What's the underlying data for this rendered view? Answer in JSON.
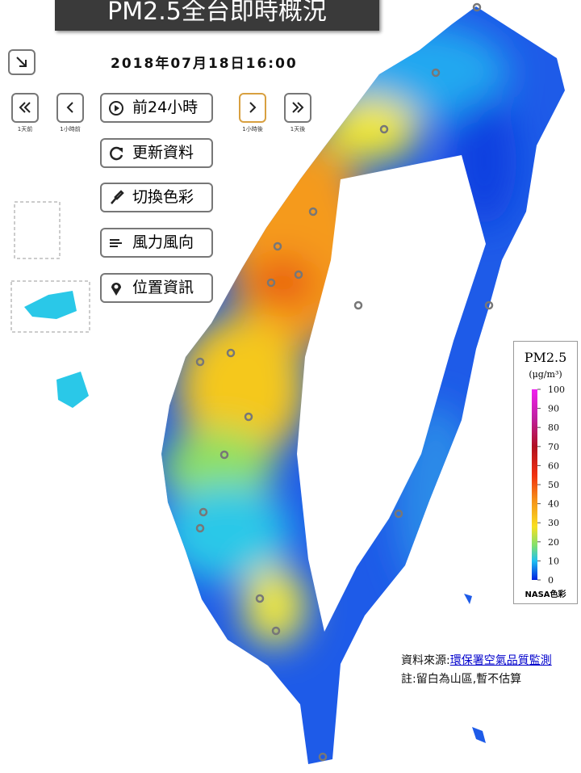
{
  "header": {
    "title": "PM2.5全台即時概況",
    "datetime": "2018年07月18日16:00"
  },
  "navigation": {
    "labels": [
      "1天前",
      "1小時前",
      "1小時後",
      "1天後"
    ]
  },
  "buttons": [
    "前24小時",
    "更新資料",
    "切換色彩",
    "風力風向",
    "位置資訊"
  ],
  "legend": {
    "title": "PM2.5",
    "unit": "(μg/m³)",
    "range": [
      0,
      100
    ],
    "ticks": [
      100,
      90,
      80,
      70,
      60,
      50,
      40,
      30,
      20,
      10,
      0
    ],
    "scheme": "NASA色彩"
  },
  "footer": {
    "source_label": "資料來源:",
    "source_link": "環保署空氣品質監測",
    "note": "註:留白為山區,暫不估算"
  }
}
